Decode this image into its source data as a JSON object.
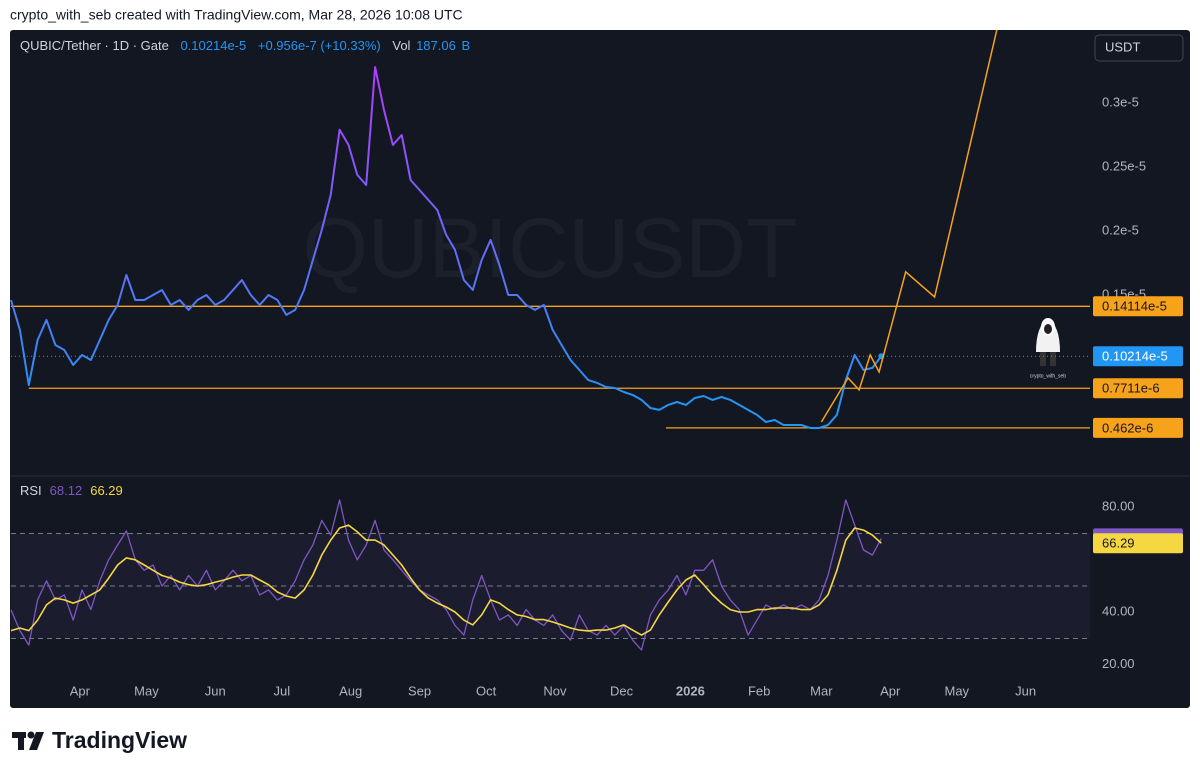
{
  "header": "crypto_with_seb created with TradingView.com, Mar 28, 2026 10:08 UTC",
  "watermark": "QUBICUSDT",
  "currency_button": "USDT",
  "avatar_caption": "crypto_with_seb",
  "footer_logo": "TradingView",
  "chart_data": [
    {
      "type": "line",
      "title": "QUBIC/Tether · 1D · Gate",
      "price_label": "0.10214e-5",
      "change": "+0.956e-7 (+10.33%)",
      "volume_label": "Vol",
      "volume": "187.06",
      "volume_unit": "B",
      "x": [
        0,
        4,
        8,
        12,
        16,
        20,
        24,
        28,
        32,
        36,
        40,
        44,
        48,
        52,
        56,
        60,
        64,
        68,
        72,
        76,
        80,
        84,
        88,
        92,
        96,
        100,
        104,
        108,
        112,
        116,
        120,
        124,
        128,
        132,
        136,
        140,
        144,
        148,
        152,
        156,
        160,
        164,
        168,
        172,
        176,
        180,
        184,
        188,
        192,
        196,
        200,
        204,
        208,
        212,
        216,
        220,
        224,
        228,
        232,
        236,
        240,
        244,
        248,
        252,
        256,
        260,
        264,
        268,
        272,
        276,
        280,
        284,
        288,
        292,
        296,
        300,
        304,
        308,
        312,
        316,
        320,
        324,
        328,
        332,
        336,
        340,
        344,
        348,
        352,
        356,
        360,
        364,
        368,
        372,
        376,
        380,
        384,
        388,
        392
      ],
      "xlim": [
        0,
        486
      ],
      "xticks": [
        {
          "value": 31,
          "label": "Apr"
        },
        {
          "value": 61,
          "label": "May"
        },
        {
          "value": 92,
          "label": "Jun"
        },
        {
          "value": 122,
          "label": "Jul"
        },
        {
          "value": 153,
          "label": "Aug"
        },
        {
          "value": 184,
          "label": "Sep"
        },
        {
          "value": 214,
          "label": "Oct"
        },
        {
          "value": 245,
          "label": "Nov"
        },
        {
          "value": 275,
          "label": "Dec"
        },
        {
          "value": 306,
          "label": "2026"
        },
        {
          "value": 337,
          "label": "Feb"
        },
        {
          "value": 365,
          "label": "Mar"
        },
        {
          "value": 396,
          "label": "Apr"
        },
        {
          "value": 426,
          "label": "May"
        },
        {
          "value": 457,
          "label": "Jun"
        }
      ],
      "series": [
        {
          "color": "#2196f3",
          "top_color": "#b13cff",
          "values": [
            1.461e-06,
            1.227e-06,
            7.97e-07,
            1.148e-06,
            1.305e-06,
            1.109e-06,
            1.07e-06,
            9.53e-07,
            1.031e-06,
            9.92e-07,
            1.148e-06,
            1.305e-06,
            1.422e-06,
            1.656e-06,
            1.461e-06,
            1.461e-06,
            1.5e-06,
            1.539e-06,
            1.422e-06,
            1.461e-06,
            1.383e-06,
            1.461e-06,
            1.5e-06,
            1.422e-06,
            1.461e-06,
            1.539e-06,
            1.617e-06,
            1.5e-06,
            1.422e-06,
            1.5e-06,
            1.461e-06,
            1.344e-06,
            1.383e-06,
            1.539e-06,
            1.773e-06,
            2.008e-06,
            2.281e-06,
            2.79e-06,
            2.672e-06,
            2.438e-06,
            2.359e-06,
            3.28e-06,
            2.945e-06,
            2.672e-06,
            2.75e-06,
            2.398e-06,
            2.32e-06,
            2.242e-06,
            2.164e-06,
            1.969e-06,
            1.852e-06,
            1.617e-06,
            1.539e-06,
            1.773e-06,
            1.93e-06,
            1.734e-06,
            1.5e-06,
            1.5e-06,
            1.422e-06,
            1.383e-06,
            1.422e-06,
            1.227e-06,
            1.109e-06,
            9.92e-07,
            9.14e-07,
            8.36e-07,
            8.13e-07,
            7.81e-07,
            7.73e-07,
            7.42e-07,
            7.19e-07,
            6.8e-07,
            6.17e-07,
            6.02e-07,
            6.41e-07,
            6.64e-07,
            6.41e-07,
            6.95e-07,
            7.11e-07,
            6.8e-07,
            7.03e-07,
            6.8e-07,
            6.41e-07,
            6.02e-07,
            5.63e-07,
            5.08e-07,
            5.23e-07,
            4.84e-07,
            4.84e-07,
            4.84e-07,
            4.61e-07,
            4.61e-07,
            4.84e-07,
            5.63e-07,
            8.36e-07,
            1.031e-06,
            9.14e-07,
            9.3e-07,
            1.0214e-06
          ]
        }
      ],
      "projection": {
        "color": "#f7a21b",
        "x": [
          365,
          377,
          382,
          387,
          391,
          403,
          416,
          444
        ],
        "values": [
          5.08e-07,
          8.52e-07,
          7.58e-07,
          1.031e-06,
          8.98e-07,
          1.68e-06,
          1.484e-06,
          3.57e-06
        ]
      },
      "levels": {
        "color": "#f7a21b",
        "x_start": [
          0,
          8,
          295
        ],
        "values": [
          1.4114e-06,
          7.711e-07,
          4.62e-07
        ],
        "value_labels": [
          "0.14114e-5",
          "0.7711e-6",
          "0.462e-6"
        ]
      },
      "last_price": {
        "value": 1.0214e-06,
        "label": "0.10214e-5",
        "color": "#2196f3"
      },
      "ylim": [
        1.17e-07,
        3.57e-06
      ],
      "yticks": [
        {
          "value": 1.5e-06,
          "label": "0.15e-5"
        },
        {
          "value": 2e-06,
          "label": "0.2e-5"
        },
        {
          "value": 2.5e-06,
          "label": "0.25e-5"
        },
        {
          "value": 3e-06,
          "label": "0.3e-5"
        }
      ]
    },
    {
      "type": "line",
      "title": "RSI",
      "x": [
        0,
        4,
        8,
        12,
        16,
        20,
        24,
        28,
        32,
        36,
        40,
        44,
        48,
        52,
        56,
        60,
        64,
        68,
        72,
        76,
        80,
        84,
        88,
        92,
        96,
        100,
        104,
        108,
        112,
        116,
        120,
        124,
        128,
        132,
        136,
        140,
        144,
        148,
        152,
        156,
        160,
        164,
        168,
        172,
        176,
        180,
        184,
        188,
        192,
        196,
        200,
        204,
        208,
        212,
        216,
        220,
        224,
        228,
        232,
        236,
        240,
        244,
        248,
        252,
        256,
        260,
        264,
        268,
        272,
        276,
        280,
        284,
        288,
        292,
        296,
        300,
        304,
        308,
        312,
        316,
        320,
        324,
        328,
        332,
        336,
        340,
        344,
        348,
        352,
        356,
        360,
        364,
        368,
        372,
        376,
        380,
        384,
        388,
        392
      ],
      "xlim": [
        0,
        486
      ],
      "series": [
        {
          "color": "#7e57c2",
          "values": [
            40.9,
            33,
            27.5,
            44.7,
            52,
            44.7,
            46.6,
            37,
            48.5,
            41,
            52,
            60,
            65.6,
            71,
            60,
            56,
            58,
            50,
            54,
            48.5,
            54,
            50,
            56,
            48.5,
            52,
            56,
            52,
            54,
            46.6,
            48.5,
            44.7,
            46.6,
            52,
            60,
            65.6,
            75,
            69.4,
            82.8,
            67.5,
            60,
            65.6,
            75,
            63.7,
            60,
            56,
            52,
            48.5,
            46.6,
            44.7,
            41,
            35,
            31.3,
            44.7,
            54,
            44.7,
            37,
            39,
            35,
            41,
            37,
            35,
            39,
            33,
            29.4,
            39,
            33,
            31.3,
            35,
            31.3,
            35,
            29.4,
            25.6,
            39,
            44.7,
            48.5,
            54,
            46.6,
            56,
            56,
            60,
            50,
            44.7,
            41,
            31.3,
            37,
            42.8,
            41,
            42.8,
            41,
            42.8,
            41,
            44.7,
            54,
            67.5,
            82.8,
            73.2,
            63.7,
            61.8,
            68.12
          ]
        },
        {
          "color": "#f5d742",
          "values": [
            33,
            34,
            33,
            37,
            42.8,
            45.4,
            44.7,
            43.5,
            44.7,
            46.6,
            48.5,
            53,
            58,
            60.7,
            60,
            58,
            56,
            54,
            53,
            51.5,
            50.5,
            50,
            50.5,
            51.5,
            52.3,
            53.4,
            54.2,
            54.2,
            52.3,
            50.5,
            47.7,
            46.2,
            45.4,
            48.5,
            54.2,
            61.8,
            67.5,
            72.1,
            73.2,
            70.6,
            67.5,
            67.5,
            65.6,
            61.8,
            58,
            53,
            48.5,
            45.4,
            43.5,
            42,
            40.1,
            37,
            35.2,
            39,
            44.7,
            43.5,
            41,
            39,
            38.4,
            37.2,
            37.2,
            36.3,
            35.2,
            34,
            33.2,
            32.9,
            33.2,
            33.2,
            34,
            35.2,
            33.2,
            31.3,
            33.2,
            39,
            43.9,
            48.5,
            52.3,
            54.2,
            50.5,
            46.6,
            43.5,
            41,
            40.1,
            40.1,
            41,
            41,
            41.6,
            41.6,
            41.6,
            41,
            41,
            42.8,
            46.6,
            56,
            67.5,
            72.1,
            71.3,
            69.4,
            66.29
          ]
        }
      ],
      "levels": [
        30,
        50,
        70
      ],
      "ylim": [
        10,
        90
      ],
      "yticks": [
        {
          "value": 20,
          "label": "20.00"
        },
        {
          "value": 40,
          "label": "40.00"
        },
        {
          "value": 80,
          "label": "80.00"
        }
      ]
    }
  ]
}
